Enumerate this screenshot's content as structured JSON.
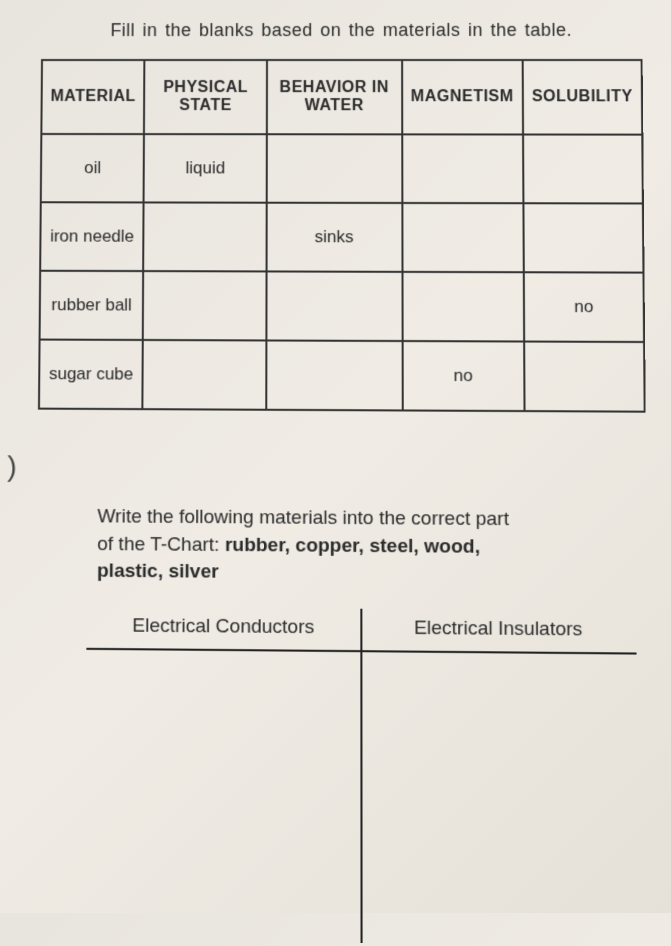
{
  "instruction1": "Fill in the blanks based on the materials in the table.",
  "table": {
    "headers": [
      "MATERIAL",
      "PHYSICAL STATE",
      "BEHAVIOR IN WATER",
      "MAGNETISM",
      "SOLUBILITY"
    ],
    "rows": [
      {
        "material": "oil",
        "physical_state": "liquid",
        "behavior_in_water": "",
        "magnetism": "",
        "solubility": ""
      },
      {
        "material": "iron needle",
        "physical_state": "",
        "behavior_in_water": "sinks",
        "magnetism": "",
        "solubility": ""
      },
      {
        "material": "rubber ball",
        "physical_state": "",
        "behavior_in_water": "",
        "magnetism": "",
        "solubility": "no"
      },
      {
        "material": "sugar cube",
        "physical_state": "",
        "behavior_in_water": "",
        "magnetism": "no",
        "solubility": ""
      }
    ]
  },
  "paren": ")",
  "instruction2_line1": "Write the following materials into the correct part",
  "instruction2_line2a": "of the T-Chart: ",
  "instruction2_line2b": "rubber, copper, steel, wood,",
  "instruction2_line3": "plastic, silver",
  "tchart": {
    "left_header": "Electrical Conductors",
    "right_header": "Electrical Insulators"
  }
}
